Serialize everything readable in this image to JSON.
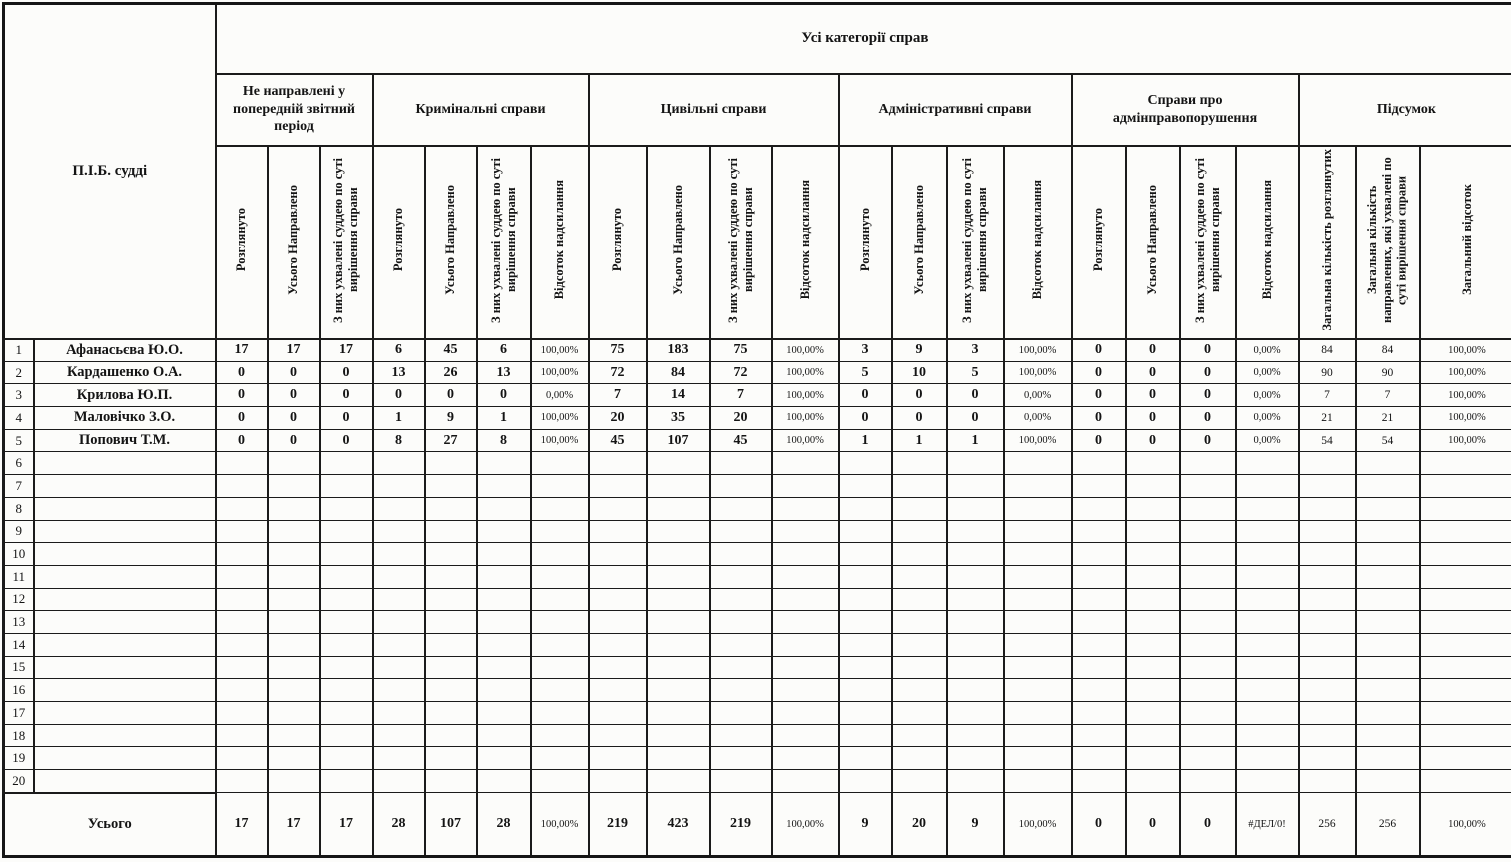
{
  "header": {
    "title": "Усі категорії справ",
    "corner": "П.І.Б. судді",
    "groups": [
      {
        "label": "Не направлені у попередній звітний період",
        "cols": 3
      },
      {
        "label": "Кримінальні справи",
        "cols": 4
      },
      {
        "label": "Цивільні справи",
        "cols": 4
      },
      {
        "label": "Адміністративні справи",
        "cols": 4
      },
      {
        "label": "Справи про адмінправопорушення",
        "cols": 4
      },
      {
        "label": "Підсумок",
        "cols": 3
      }
    ],
    "subcolumns": [
      "Розглянуто",
      "Усього Направлено",
      "З них ухвалені суддею по суті вирішення справи",
      "Розглянуто",
      "Усього Направлено",
      "З них ухвалені суддею по суті вирішення справи",
      "Відсоток надсилання",
      "Розглянуто",
      "Усього Направлено",
      "З них ухвалені суддею по суті вирішення справи",
      "Відсоток надсилання",
      "Розглянуто",
      "Усього Направлено",
      "З них ухвалені суддею по суті вирішення справи",
      "Відсоток надсилання",
      "Розглянуто",
      "Усього Направлено",
      "З них ухвалені суддею по суті вирішення справи",
      "Відсоток надсилання",
      "Загальна кількість розглянутих",
      "Загальна кількість направлених, які ухвалені по суті вирішення справи",
      "Загальний відсоток"
    ]
  },
  "rows": [
    {
      "num": "1",
      "name": "Афанасьєва Ю.О.",
      "values": [
        "17",
        "17",
        "17",
        "6",
        "45",
        "6",
        "100,00%",
        "75",
        "183",
        "75",
        "100,00%",
        "3",
        "9",
        "3",
        "100,00%",
        "0",
        "0",
        "0",
        "0,00%",
        "84",
        "84",
        "100,00%"
      ]
    },
    {
      "num": "2",
      "name": "Кардашенко О.А.",
      "values": [
        "0",
        "0",
        "0",
        "13",
        "26",
        "13",
        "100,00%",
        "72",
        "84",
        "72",
        "100,00%",
        "5",
        "10",
        "5",
        "100,00%",
        "0",
        "0",
        "0",
        "0,00%",
        "90",
        "90",
        "100,00%"
      ]
    },
    {
      "num": "3",
      "name": "Крилова Ю.П.",
      "values": [
        "0",
        "0",
        "0",
        "0",
        "0",
        "0",
        "0,00%",
        "7",
        "14",
        "7",
        "100,00%",
        "0",
        "0",
        "0",
        "0,00%",
        "0",
        "0",
        "0",
        "0,00%",
        "7",
        "7",
        "100,00%"
      ]
    },
    {
      "num": "4",
      "name": "Маловічко З.О.",
      "values": [
        "0",
        "0",
        "0",
        "1",
        "9",
        "1",
        "100,00%",
        "20",
        "35",
        "20",
        "100,00%",
        "0",
        "0",
        "0",
        "0,00%",
        "0",
        "0",
        "0",
        "0,00%",
        "21",
        "21",
        "100,00%"
      ]
    },
    {
      "num": "5",
      "name": "Попович Т.М.",
      "values": [
        "0",
        "0",
        "0",
        "8",
        "27",
        "8",
        "100,00%",
        "45",
        "107",
        "45",
        "100,00%",
        "1",
        "1",
        "1",
        "100,00%",
        "0",
        "0",
        "0",
        "0,00%",
        "54",
        "54",
        "100,00%"
      ]
    },
    {
      "num": "6",
      "name": "",
      "values": []
    },
    {
      "num": "7",
      "name": "",
      "values": []
    },
    {
      "num": "8",
      "name": "",
      "values": []
    },
    {
      "num": "9",
      "name": "",
      "values": []
    },
    {
      "num": "10",
      "name": "",
      "values": []
    },
    {
      "num": "11",
      "name": "",
      "values": []
    },
    {
      "num": "12",
      "name": "",
      "values": []
    },
    {
      "num": "13",
      "name": "",
      "values": []
    },
    {
      "num": "14",
      "name": "",
      "values": []
    },
    {
      "num": "15",
      "name": "",
      "values": []
    },
    {
      "num": "16",
      "name": "",
      "values": []
    },
    {
      "num": "17",
      "name": "",
      "values": []
    },
    {
      "num": "18",
      "name": "",
      "values": []
    },
    {
      "num": "19",
      "name": "",
      "values": []
    },
    {
      "num": "20",
      "name": "",
      "values": []
    }
  ],
  "total": {
    "label": "Усього",
    "values": [
      "17",
      "17",
      "17",
      "28",
      "107",
      "28",
      "100,00%",
      "219",
      "423",
      "219",
      "100,00%",
      "9",
      "20",
      "9",
      "100,00%",
      "0",
      "0",
      "0",
      "#ДЕЛ/0!",
      "256",
      "256",
      "100,00%"
    ]
  }
}
